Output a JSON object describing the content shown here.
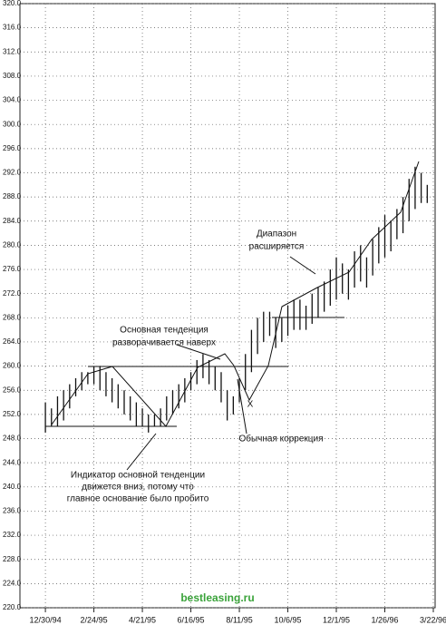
{
  "chart_data": {
    "type": "range-bar",
    "xlim": [
      -4.2,
      64.3
    ],
    "xticks": [
      {
        "value": 0,
        "label": "12/30/94"
      },
      {
        "value": 8,
        "label": "2/24/95"
      },
      {
        "value": 16,
        "label": "4/21/95"
      },
      {
        "value": 24,
        "label": "6/16/95"
      },
      {
        "value": 32,
        "label": "8/11/95"
      },
      {
        "value": 40,
        "label": "10/6/95"
      },
      {
        "value": 48,
        "label": "12/1/95"
      },
      {
        "value": 56,
        "label": "1/26/96"
      },
      {
        "value": 64,
        "label": "3/22/96"
      }
    ],
    "ylim": [
      220,
      320
    ],
    "yticks": [
      {
        "value": 220,
        "label": "220.0"
      },
      {
        "value": 224,
        "label": "224.0"
      },
      {
        "value": 228,
        "label": "228.0"
      },
      {
        "value": 232,
        "label": "232.0"
      },
      {
        "value": 236,
        "label": "236.0"
      },
      {
        "value": 240,
        "label": "240.0"
      },
      {
        "value": 244,
        "label": "244.0"
      },
      {
        "value": 248,
        "label": "248.0"
      },
      {
        "value": 252,
        "label": "252.0"
      },
      {
        "value": 256,
        "label": "256.0"
      },
      {
        "value": 260,
        "label": "260.0"
      },
      {
        "value": 264,
        "label": "264.0"
      },
      {
        "value": 268,
        "label": "268.0"
      },
      {
        "value": 272,
        "label": "272.0"
      },
      {
        "value": 276,
        "label": "276.0"
      },
      {
        "value": 280,
        "label": "280.0"
      },
      {
        "value": 284,
        "label": "284.0"
      },
      {
        "value": 288,
        "label": "288.0"
      },
      {
        "value": 292,
        "label": "292.0"
      },
      {
        "value": 296,
        "label": "296.0"
      },
      {
        "value": 300,
        "label": "300.0"
      },
      {
        "value": 304,
        "label": "304.0"
      },
      {
        "value": 308,
        "label": "308.0"
      },
      {
        "value": 312,
        "label": "312.0"
      },
      {
        "value": 316,
        "label": "316.0"
      },
      {
        "value": 320,
        "label": "320.0"
      }
    ],
    "grid": true,
    "color": "#111111",
    "x": [
      0,
      1,
      2,
      3,
      4,
      5,
      6,
      7,
      8,
      9,
      10,
      11,
      12,
      13,
      14,
      15,
      16,
      17,
      18,
      19,
      20,
      21,
      22,
      23,
      24,
      25,
      26,
      27,
      28,
      29,
      30,
      31,
      32,
      33,
      34,
      35,
      36,
      37,
      38,
      39,
      40,
      41,
      42,
      43,
      44,
      45,
      46,
      47,
      48,
      49,
      50,
      51,
      52,
      53,
      54,
      55,
      56,
      57,
      58,
      59,
      60,
      61,
      62,
      63
    ],
    "high": [
      254,
      253,
      255,
      256,
      257,
      258,
      259,
      259,
      260,
      260,
      259,
      258,
      257,
      256,
      255,
      254,
      253,
      252,
      252,
      253,
      255,
      256,
      257,
      258,
      259,
      261,
      262,
      261,
      260,
      259,
      256,
      255,
      258,
      262,
      266,
      268,
      269,
      269,
      268,
      268,
      270,
      271,
      271,
      270,
      272,
      273,
      274,
      276,
      278,
      277,
      276,
      279,
      280,
      278,
      281,
      283,
      285,
      284,
      286,
      288,
      291,
      293,
      292,
      290
    ],
    "low": [
      249,
      250,
      250,
      251,
      253,
      255,
      256,
      257,
      257,
      256,
      255,
      254,
      253,
      252,
      251,
      250,
      250,
      249,
      250,
      250,
      251,
      252,
      253,
      254,
      256,
      257,
      258,
      257,
      256,
      254,
      251,
      252,
      254,
      256,
      259,
      262,
      264,
      265,
      263,
      264,
      265,
      266,
      266,
      266,
      267,
      268,
      269,
      270,
      271,
      272,
      271,
      273,
      274,
      273,
      275,
      277,
      278,
      279,
      281,
      282,
      284,
      286,
      287,
      287
    ],
    "annotations": [
      {
        "lines": [
          "Диапазон",
          "расширяется"
        ]
      },
      {
        "lines": [
          "Основная тенденция",
          "разворачивается наверх"
        ]
      },
      {
        "lines": [
          "Обычная коррекция"
        ]
      },
      {
        "lines": [
          "Индикатор основной тенденции",
          "движется вниз, потому что",
          "главное основание было пробито"
        ]
      },
      {
        "lines": [
          "X"
        ]
      }
    ],
    "watermark": "bestleasing.ru"
  }
}
